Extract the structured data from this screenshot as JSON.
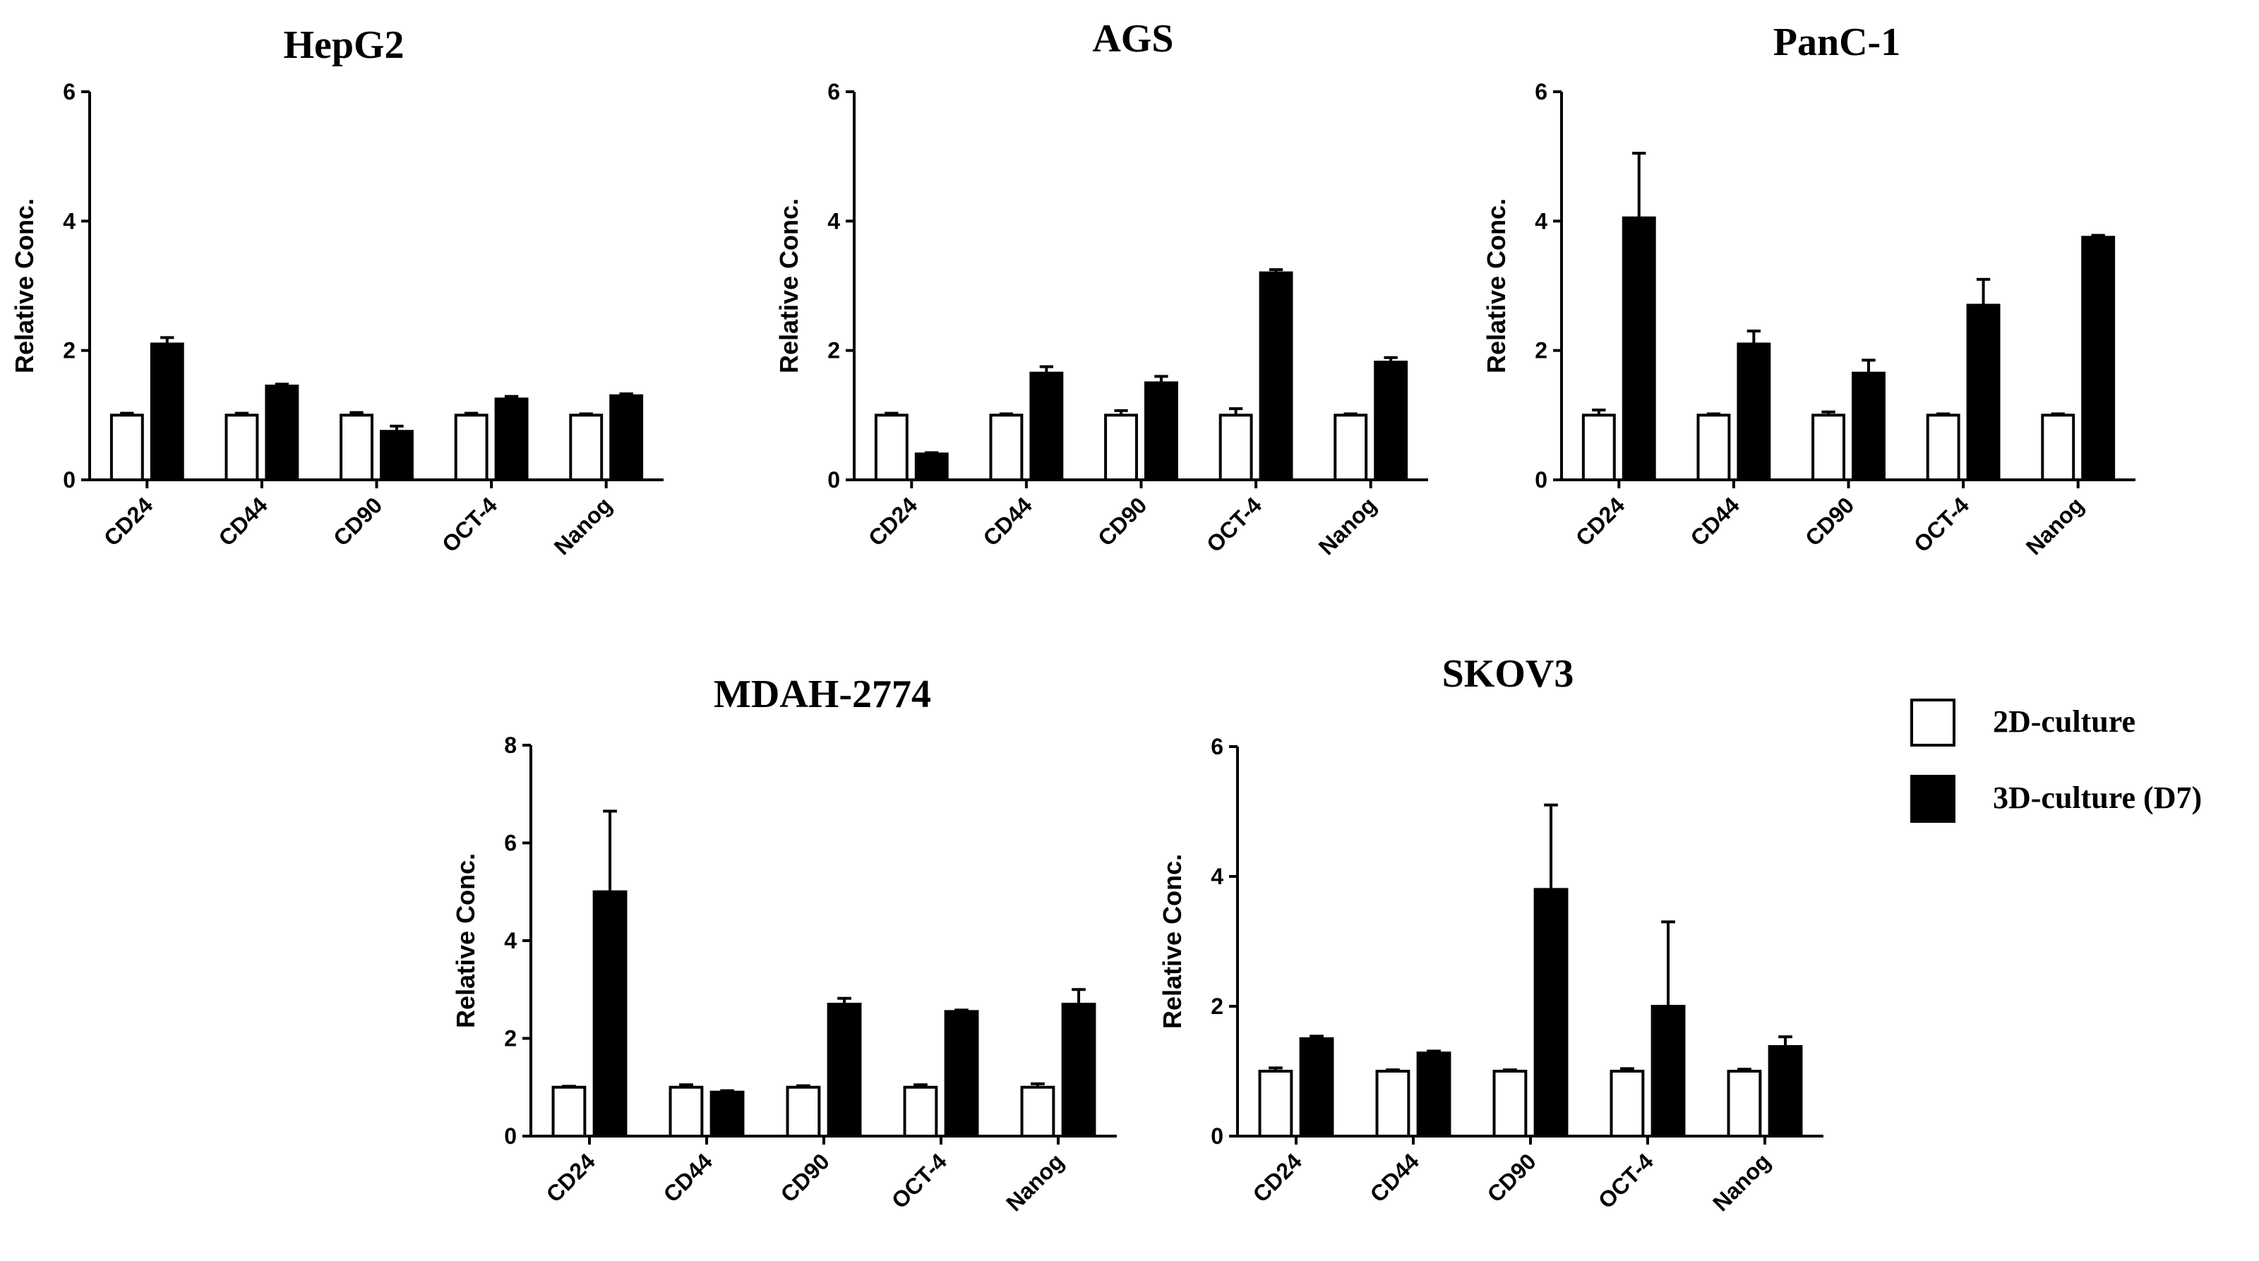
{
  "chart_data": [
    {
      "type": "bar",
      "title": "HepG2",
      "ylabel": "Relative Conc.",
      "ylim": [
        0,
        6
      ],
      "yticks": [
        0,
        2,
        4,
        6
      ],
      "categories": [
        "CD24",
        "CD44",
        "CD90",
        "OCT-4",
        "Nanog"
      ],
      "series": [
        {
          "name": "2D-culture",
          "values": [
            1.0,
            1.0,
            1.0,
            1.0,
            1.0
          ],
          "errors": [
            0.03,
            0.03,
            0.04,
            0.03,
            0.02
          ]
        },
        {
          "name": "3D-culture (D7)",
          "values": [
            2.1,
            1.45,
            0.75,
            1.25,
            1.3
          ],
          "errors": [
            0.1,
            0.03,
            0.08,
            0.04,
            0.03
          ]
        }
      ]
    },
    {
      "type": "bar",
      "title": "AGS",
      "ylabel": "Relative Conc.",
      "ylim": [
        0,
        6
      ],
      "yticks": [
        0,
        2,
        4,
        6
      ],
      "categories": [
        "CD24",
        "CD44",
        "CD90",
        "OCT-4",
        "Nanog"
      ],
      "series": [
        {
          "name": "2D-culture",
          "values": [
            1.0,
            1.0,
            1.0,
            1.0,
            1.0
          ],
          "errors": [
            0.03,
            0.02,
            0.07,
            0.1,
            0.02
          ]
        },
        {
          "name": "3D-culture (D7)",
          "values": [
            0.4,
            1.65,
            1.5,
            3.2,
            1.82
          ],
          "errors": [
            0.02,
            0.1,
            0.1,
            0.05,
            0.07
          ]
        }
      ]
    },
    {
      "type": "bar",
      "title": "PanC-1",
      "ylabel": "Relative Conc.",
      "ylim": [
        0,
        6
      ],
      "yticks": [
        0,
        2,
        4,
        6
      ],
      "categories": [
        "CD24",
        "CD44",
        "CD90",
        "OCT-4",
        "Nanog"
      ],
      "series": [
        {
          "name": "2D-culture",
          "values": [
            1.0,
            1.0,
            1.0,
            1.0,
            1.0
          ],
          "errors": [
            0.08,
            0.02,
            0.05,
            0.02,
            0.02
          ]
        },
        {
          "name": "3D-culture (D7)",
          "values": [
            4.05,
            2.1,
            1.65,
            2.7,
            3.75
          ],
          "errors": [
            1.0,
            0.2,
            0.2,
            0.4,
            0.03
          ]
        }
      ]
    },
    {
      "type": "bar",
      "title": "MDAH-2774",
      "ylabel": "Relative Conc.",
      "ylim": [
        0,
        8
      ],
      "yticks": [
        0,
        2,
        4,
        6,
        8
      ],
      "categories": [
        "CD24",
        "CD44",
        "CD90",
        "OCT-4",
        "Nanog"
      ],
      "series": [
        {
          "name": "2D-culture",
          "values": [
            1.0,
            1.0,
            1.0,
            1.0,
            1.0
          ],
          "errors": [
            0.02,
            0.05,
            0.03,
            0.05,
            0.07
          ]
        },
        {
          "name": "3D-culture (D7)",
          "values": [
            5.0,
            0.9,
            2.7,
            2.55,
            2.7
          ],
          "errors": [
            1.65,
            0.03,
            0.12,
            0.03,
            0.3
          ]
        }
      ]
    },
    {
      "type": "bar",
      "title": "SKOV3",
      "ylabel": "Relative Conc.",
      "ylim": [
        0,
        6
      ],
      "yticks": [
        0,
        2,
        4,
        6
      ],
      "categories": [
        "CD24",
        "CD44",
        "CD90",
        "OCT-4",
        "Nanog"
      ],
      "series": [
        {
          "name": "2D-culture",
          "values": [
            1.0,
            1.0,
            1.0,
            1.0,
            1.0
          ],
          "errors": [
            0.05,
            0.02,
            0.02,
            0.04,
            0.03
          ]
        },
        {
          "name": "3D-culture (D7)",
          "values": [
            1.5,
            1.28,
            3.8,
            2.0,
            1.38
          ],
          "errors": [
            0.04,
            0.03,
            1.3,
            1.3,
            0.15
          ]
        }
      ]
    }
  ],
  "legend": {
    "placement": "right",
    "items": [
      {
        "label": "2D-culture",
        "fill": "#ffffff"
      },
      {
        "label": "3D-culture (D7)",
        "fill": "#000000"
      }
    ]
  },
  "colors": {
    "series_2d_fill": "#ffffff",
    "series_3d_fill": "#000000",
    "stroke": "#000000"
  }
}
